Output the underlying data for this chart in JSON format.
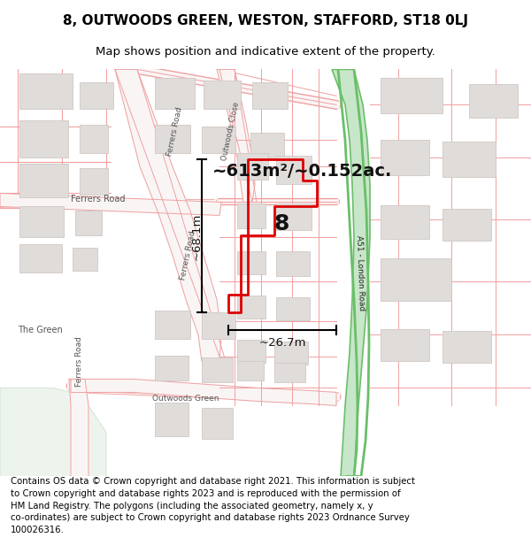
{
  "title_line1": "8, OUTWOODS GREEN, WESTON, STAFFORD, ST18 0LJ",
  "title_line2": "Map shows position and indicative extent of the property.",
  "footer_text": "Contains OS data © Crown copyright and database right 2021. This information is subject\nto Crown copyright and database rights 2023 and is reproduced with the permission of\nHM Land Registry. The polygons (including the associated geometry, namely x, y\nco-ordinates) are subject to Crown copyright and database rights 2023 Ordnance Survey\n100026316.",
  "area_label": "~613m²/~0.152ac.",
  "number_label": "8",
  "dim_vertical": "~68.1m",
  "dim_horizontal": "~26.7m",
  "road_label": "A51 - London Road",
  "road_color": "#f0a0a0",
  "road_fill": "#faf5f5",
  "building_face": "#e0dcda",
  "building_edge": "#d0c8c4",
  "green_strip": "#6abf69",
  "green_strip_light": "#c8e6c9",
  "plot_red": "#dd0000",
  "park_green": "#e8f0e8",
  "title_fontsize": 11,
  "sub_fontsize": 9.5,
  "footer_fontsize": 7.3,
  "map_label_color": "#555555"
}
